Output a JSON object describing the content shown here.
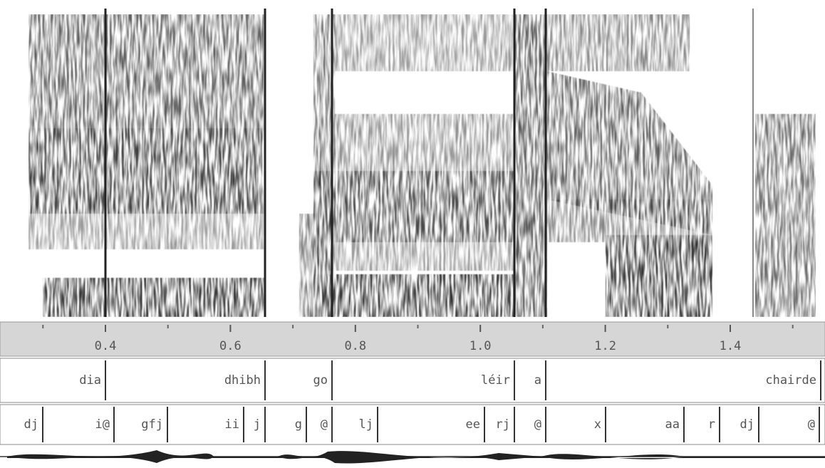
{
  "time_axis": {
    "ticks": [
      0.4,
      0.6,
      0.8,
      {
        "value": 1,
        "label": "1.0"
      },
      1.2,
      1.4
    ]
  },
  "word_tier": [
    "dia",
    "dhibh",
    "go",
    "léir",
    "a",
    "chairde"
  ],
  "phone_tier": [
    "dj",
    "i@",
    "gfj",
    "ii",
    "j",
    "g",
    "@",
    "lj",
    "ee",
    "rj",
    "@",
    "x",
    "aa",
    "r",
    "dj",
    "@"
  ]
}
